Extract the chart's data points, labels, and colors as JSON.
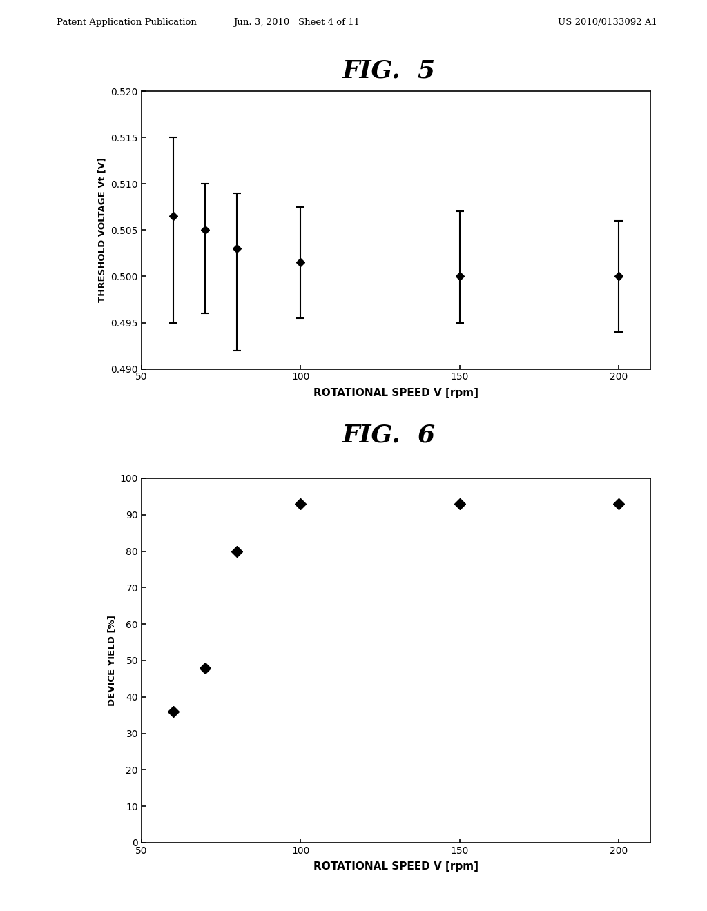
{
  "fig5": {
    "title": "FIG.  5",
    "x": [
      60,
      70,
      80,
      100,
      150,
      200
    ],
    "y": [
      0.5065,
      0.505,
      0.503,
      0.5015,
      0.5,
      0.5
    ],
    "yerr_upper": [
      0.0085,
      0.005,
      0.006,
      0.006,
      0.007,
      0.006
    ],
    "yerr_lower": [
      0.0115,
      0.009,
      0.011,
      0.006,
      0.005,
      0.006
    ],
    "xlabel": "ROTATIONAL SPEED V [rpm]",
    "ylabel": "THRESHOLD VOLTAGE Vt [V]",
    "xlim": [
      50,
      210
    ],
    "ylim": [
      0.49,
      0.52
    ],
    "yticks": [
      0.49,
      0.495,
      0.5,
      0.505,
      0.51,
      0.515,
      0.52
    ],
    "xticks": [
      50,
      100,
      150,
      200
    ]
  },
  "fig6": {
    "title": "FIG.  6",
    "x": [
      60,
      70,
      80,
      100,
      150,
      200
    ],
    "y": [
      36,
      48,
      80,
      93,
      93,
      93
    ],
    "xlabel": "ROTATIONAL SPEED V [rpm]",
    "ylabel": "DEVICE YIELD [%]",
    "xlim": [
      50,
      210
    ],
    "ylim": [
      0,
      100
    ],
    "yticks": [
      0,
      10,
      20,
      30,
      40,
      50,
      60,
      70,
      80,
      90,
      100
    ],
    "xticks": [
      50,
      100,
      150,
      200
    ]
  },
  "header_left": "Patent Application Publication",
  "header_center": "Jun. 3, 2010   Sheet 4 of 11",
  "header_right": "US 2010/0133092 A1",
  "bg_color": "#ffffff",
  "text_color": "#000000"
}
